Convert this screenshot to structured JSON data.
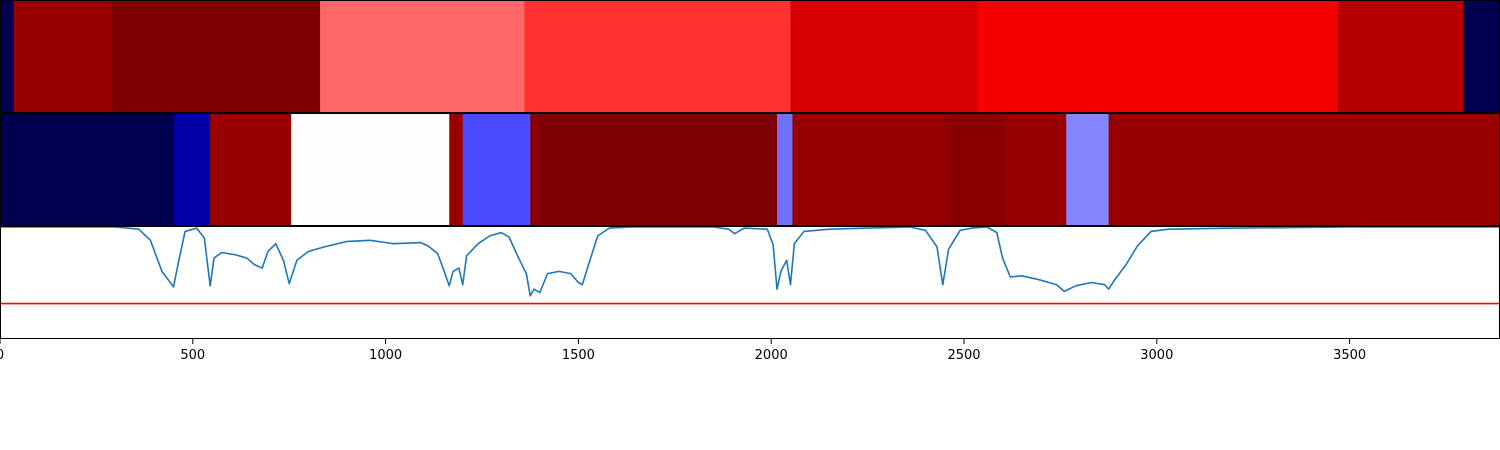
{
  "chart_data": [
    {
      "type": "heatmap",
      "xlim": [
        0,
        3890
      ],
      "colormap": "seismic",
      "segments": [
        {
          "start": 0,
          "end": 35,
          "color": "#00004e"
        },
        {
          "start": 35,
          "end": 290,
          "color": "#990000"
        },
        {
          "start": 290,
          "end": 830,
          "color": "#7f0000"
        },
        {
          "start": 830,
          "end": 1360,
          "color": "#ff6868"
        },
        {
          "start": 1360,
          "end": 2050,
          "color": "#ff3030"
        },
        {
          "start": 2050,
          "end": 2535,
          "color": "#d60000"
        },
        {
          "start": 2535,
          "end": 3470,
          "color": "#f60000"
        },
        {
          "start": 3470,
          "end": 3795,
          "color": "#b60000"
        },
        {
          "start": 3795,
          "end": 3890,
          "color": "#00004e"
        }
      ]
    },
    {
      "type": "heatmap",
      "xlim": [
        0,
        3890
      ],
      "colormap": "seismic",
      "segments": [
        {
          "start": 0,
          "end": 450,
          "color": "#00004e"
        },
        {
          "start": 450,
          "end": 545,
          "color": "#0000a6"
        },
        {
          "start": 545,
          "end": 755,
          "color": "#990000"
        },
        {
          "start": 755,
          "end": 1165,
          "color": "#fffcfc"
        },
        {
          "start": 1165,
          "end": 1200,
          "color": "#990000"
        },
        {
          "start": 1200,
          "end": 1375,
          "color": "#4b4bff"
        },
        {
          "start": 1375,
          "end": 1400,
          "color": "#8a0000"
        },
        {
          "start": 1400,
          "end": 2015,
          "color": "#7f0000"
        },
        {
          "start": 2015,
          "end": 2055,
          "color": "#7070ff"
        },
        {
          "start": 2055,
          "end": 2450,
          "color": "#990000"
        },
        {
          "start": 2450,
          "end": 2610,
          "color": "#8a0000"
        },
        {
          "start": 2610,
          "end": 2765,
          "color": "#990000"
        },
        {
          "start": 2765,
          "end": 2875,
          "color": "#8585ff"
        },
        {
          "start": 2875,
          "end": 3890,
          "color": "#990000"
        }
      ]
    },
    {
      "type": "line",
      "xlim": [
        0,
        3890
      ],
      "ylim": [
        0,
        1
      ],
      "x_ticks": [
        0,
        500,
        1000,
        1500,
        2000,
        2500,
        3000,
        3500
      ],
      "tick_labels": [
        "0",
        "500",
        "1000",
        "1500",
        "2000",
        "2500",
        "3000",
        "3500"
      ],
      "series": [
        {
          "color": "#1f77b4",
          "points": [
            [
              0,
              1.0
            ],
            [
              300,
              1.0
            ],
            [
              360,
              0.98
            ],
            [
              390,
              0.88
            ],
            [
              420,
              0.6
            ],
            [
              450,
              0.46
            ],
            [
              465,
              0.72
            ],
            [
              480,
              0.96
            ],
            [
              510,
              0.99
            ],
            [
              530,
              0.9
            ],
            [
              545,
              0.47
            ],
            [
              555,
              0.72
            ],
            [
              575,
              0.77
            ],
            [
              610,
              0.75
            ],
            [
              640,
              0.72
            ],
            [
              660,
              0.66
            ],
            [
              680,
              0.63
            ],
            [
              695,
              0.78
            ],
            [
              715,
              0.85
            ],
            [
              735,
              0.7
            ],
            [
              750,
              0.49
            ],
            [
              770,
              0.7
            ],
            [
              800,
              0.78
            ],
            [
              840,
              0.82
            ],
            [
              900,
              0.87
            ],
            [
              960,
              0.88
            ],
            [
              1020,
              0.85
            ],
            [
              1090,
              0.86
            ],
            [
              1110,
              0.83
            ],
            [
              1135,
              0.76
            ],
            [
              1150,
              0.62
            ],
            [
              1165,
              0.47
            ],
            [
              1175,
              0.6
            ],
            [
              1190,
              0.63
            ],
            [
              1200,
              0.48
            ],
            [
              1210,
              0.74
            ],
            [
              1240,
              0.85
            ],
            [
              1270,
              0.92
            ],
            [
              1300,
              0.95
            ],
            [
              1320,
              0.91
            ],
            [
              1345,
              0.72
            ],
            [
              1365,
              0.58
            ],
            [
              1375,
              0.38
            ],
            [
              1385,
              0.44
            ],
            [
              1400,
              0.41
            ],
            [
              1420,
              0.58
            ],
            [
              1450,
              0.6
            ],
            [
              1480,
              0.58
            ],
            [
              1500,
              0.5
            ],
            [
              1510,
              0.48
            ],
            [
              1530,
              0.7
            ],
            [
              1550,
              0.92
            ],
            [
              1580,
              0.99
            ],
            [
              1640,
              1.0
            ],
            [
              1850,
              1.0
            ],
            [
              1890,
              0.98
            ],
            [
              1905,
              0.94
            ],
            [
              1930,
              0.99
            ],
            [
              1990,
              0.98
            ],
            [
              2005,
              0.84
            ],
            [
              2015,
              0.44
            ],
            [
              2025,
              0.6
            ],
            [
              2040,
              0.7
            ],
            [
              2050,
              0.48
            ],
            [
              2060,
              0.85
            ],
            [
              2085,
              0.96
            ],
            [
              2150,
              0.98
            ],
            [
              2250,
              0.99
            ],
            [
              2360,
              1.0
            ],
            [
              2400,
              0.97
            ],
            [
              2430,
              0.82
            ],
            [
              2445,
              0.48
            ],
            [
              2460,
              0.8
            ],
            [
              2490,
              0.97
            ],
            [
              2520,
              0.99
            ],
            [
              2560,
              1.0
            ],
            [
              2585,
              0.95
            ],
            [
              2600,
              0.72
            ],
            [
              2620,
              0.55
            ],
            [
              2650,
              0.56
            ],
            [
              2700,
              0.52
            ],
            [
              2740,
              0.48
            ],
            [
              2760,
              0.42
            ],
            [
              2790,
              0.47
            ],
            [
              2830,
              0.5
            ],
            [
              2865,
              0.48
            ],
            [
              2875,
              0.44
            ],
            [
              2890,
              0.52
            ],
            [
              2920,
              0.66
            ],
            [
              2950,
              0.83
            ],
            [
              2985,
              0.96
            ],
            [
              3030,
              0.98
            ],
            [
              3200,
              0.99
            ],
            [
              3500,
              1.0
            ],
            [
              3890,
              1.0
            ]
          ]
        },
        {
          "color": "#ff0000",
          "points": [
            [
              0,
              0.31
            ],
            [
              3890,
              0.31
            ]
          ]
        }
      ]
    }
  ]
}
